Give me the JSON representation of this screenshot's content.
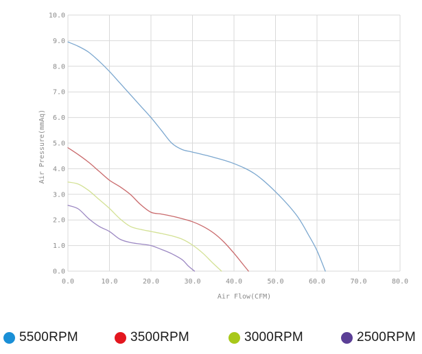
{
  "chart_data": {
    "type": "line",
    "xlabel": "Air Flow(CFM)",
    "ylabel": "Air Pressure(mmAq)",
    "xlim": [
      0,
      80
    ],
    "ylim": [
      0,
      10
    ],
    "x_ticks": [
      "0.0",
      "10.0",
      "20.0",
      "30.0",
      "40.0",
      "50.0",
      "60.0",
      "70.0",
      "80.0"
    ],
    "y_ticks": [
      "0.0",
      "1.0",
      "2.0",
      "3.0",
      "4.0",
      "5.0",
      "6.0",
      "7.0",
      "8.0",
      "9.0",
      "10.0"
    ],
    "grid": true,
    "legend_placement": "bottom",
    "series": [
      {
        "name": "5500RPM",
        "line_color": "#7ba7cf",
        "legend_color": "#1a8fd6",
        "x": [
          0,
          2.5,
          5,
          7.5,
          10,
          12.5,
          15,
          17.5,
          20,
          22.5,
          25,
          27.5,
          30,
          35,
          40,
          45,
          50,
          55,
          58,
          60,
          62
        ],
        "y": [
          8.95,
          8.78,
          8.55,
          8.2,
          7.8,
          7.35,
          6.9,
          6.45,
          6.0,
          5.5,
          5.0,
          4.75,
          4.65,
          4.45,
          4.2,
          3.8,
          3.1,
          2.2,
          1.4,
          0.8,
          0.0
        ]
      },
      {
        "name": "3500RPM",
        "line_color": "#c9696b",
        "legend_color": "#e3161e",
        "x": [
          0,
          2.5,
          5,
          7.5,
          10,
          12.5,
          15,
          17.5,
          20,
          22.5,
          25,
          27.5,
          30,
          32.5,
          35,
          37.5,
          40,
          42,
          43.5
        ],
        "y": [
          4.82,
          4.55,
          4.25,
          3.9,
          3.55,
          3.3,
          3.0,
          2.6,
          2.3,
          2.23,
          2.15,
          2.05,
          1.93,
          1.75,
          1.5,
          1.15,
          0.7,
          0.3,
          0.0
        ]
      },
      {
        "name": "3000RPM",
        "line_color": "#d3e194",
        "legend_color": "#a8c81a",
        "x": [
          0,
          2.5,
          5,
          7.5,
          10,
          12.5,
          15,
          17.5,
          20,
          22.5,
          25,
          27.5,
          30,
          32.5,
          35,
          37
        ],
        "y": [
          3.48,
          3.4,
          3.15,
          2.8,
          2.45,
          2.05,
          1.75,
          1.63,
          1.55,
          1.47,
          1.38,
          1.25,
          1.02,
          0.7,
          0.3,
          0.0
        ]
      },
      {
        "name": "2500RPM",
        "line_color": "#9b87c2",
        "legend_color": "#5b3f96",
        "x": [
          0,
          2.5,
          5,
          7.5,
          10,
          12.5,
          15,
          17.5,
          20,
          22.5,
          25,
          27.5,
          29,
          30.5
        ],
        "y": [
          2.57,
          2.43,
          2.05,
          1.75,
          1.55,
          1.25,
          1.12,
          1.06,
          1.0,
          0.85,
          0.68,
          0.45,
          0.2,
          0.0
        ]
      }
    ]
  }
}
